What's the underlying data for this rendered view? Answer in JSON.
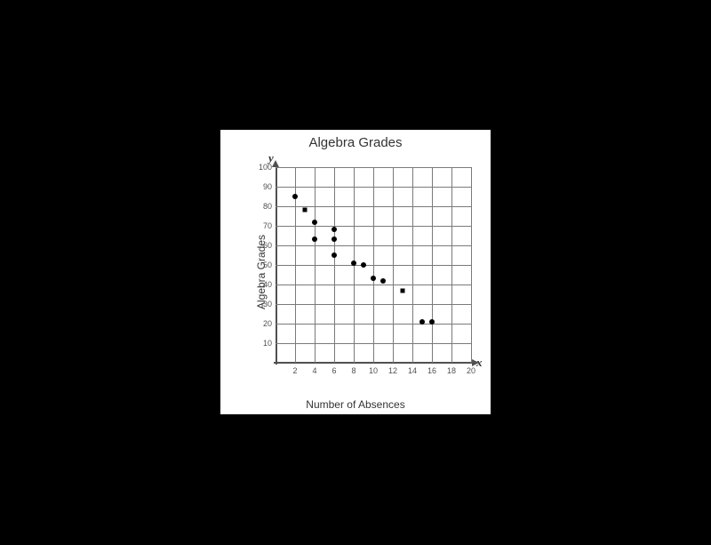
{
  "chart": {
    "type": "scatter",
    "title": "Algebra Grades",
    "x_axis_label": "Number of Absences",
    "y_axis_label": "Algebra Grades",
    "x_letter": "x",
    "y_letter": "y",
    "xlim": [
      0,
      20
    ],
    "ylim": [
      0,
      100
    ],
    "x_ticks": [
      2,
      4,
      6,
      8,
      10,
      12,
      14,
      16,
      18,
      20
    ],
    "y_ticks": [
      10,
      20,
      30,
      40,
      50,
      60,
      70,
      80,
      90,
      100
    ],
    "background_color": "#ffffff",
    "grid_color": "#7a7a7a",
    "axis_color": "#505050",
    "title_color": "#333333",
    "label_color": "#333333",
    "tick_font_size": 9,
    "label_font_size": 12,
    "title_font_size": 15,
    "point_color": "#000000",
    "point_radius": 3,
    "data": [
      {
        "x": 2,
        "y": 85,
        "shape": "circle"
      },
      {
        "x": 3,
        "y": 78,
        "shape": "square"
      },
      {
        "x": 4,
        "y": 72,
        "shape": "circle"
      },
      {
        "x": 4,
        "y": 63,
        "shape": "circle"
      },
      {
        "x": 6,
        "y": 68,
        "shape": "circle"
      },
      {
        "x": 6,
        "y": 63,
        "shape": "circle"
      },
      {
        "x": 6,
        "y": 55,
        "shape": "circle"
      },
      {
        "x": 8,
        "y": 51,
        "shape": "circle"
      },
      {
        "x": 9,
        "y": 50,
        "shape": "circle"
      },
      {
        "x": 10,
        "y": 43,
        "shape": "circle"
      },
      {
        "x": 11,
        "y": 42,
        "shape": "circle"
      },
      {
        "x": 13,
        "y": 37,
        "shape": "square"
      },
      {
        "x": 15,
        "y": 21,
        "shape": "circle"
      },
      {
        "x": 16,
        "y": 21,
        "shape": "circle"
      }
    ]
  }
}
